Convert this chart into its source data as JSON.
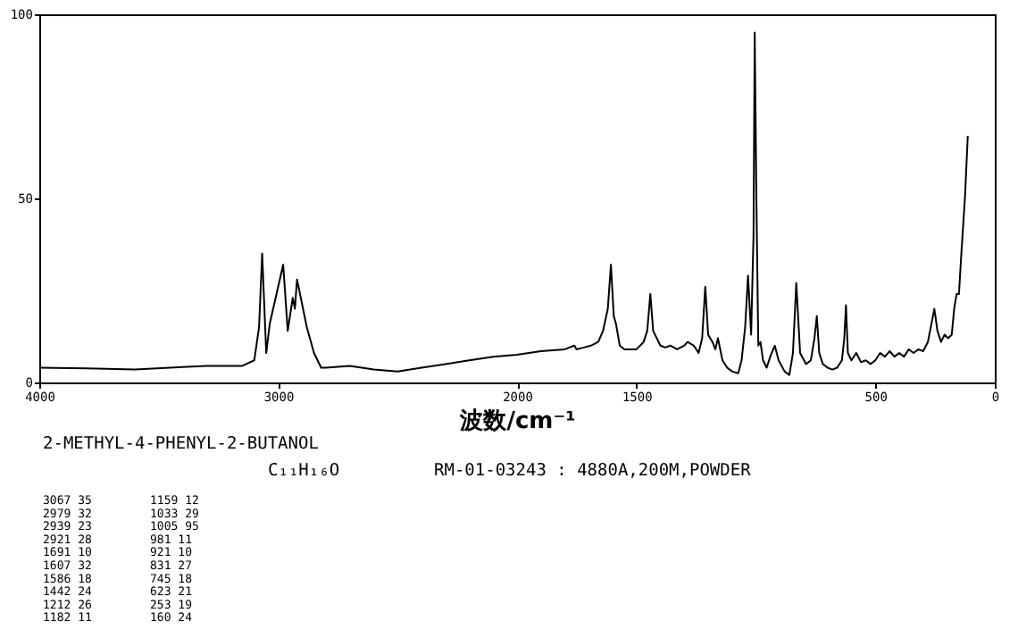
{
  "chart_data": {
    "type": "line",
    "xlabel": "波数/cm⁻¹",
    "x": [
      4000,
      3800,
      3600,
      3400,
      3300,
      3150,
      3100,
      3080,
      3067,
      3050,
      3035,
      2979,
      2960,
      2939,
      2930,
      2921,
      2880,
      2850,
      2820,
      2800,
      2700,
      2600,
      2500,
      2400,
      2300,
      2200,
      2100,
      2000,
      1900,
      1800,
      1760,
      1751,
      1720,
      1691,
      1660,
      1640,
      1620,
      1607,
      1595,
      1586,
      1570,
      1550,
      1500,
      1470,
      1455,
      1442,
      1430,
      1400,
      1380,
      1357,
      1330,
      1300,
      1286,
      1260,
      1240,
      1225,
      1212,
      1200,
      1182,
      1170,
      1159,
      1140,
      1120,
      1100,
      1074,
      1060,
      1045,
      1033,
      1020,
      1010,
      1005,
      998,
      990,
      981,
      970,
      955,
      940,
      921,
      905,
      880,
      860,
      845,
      831,
      815,
      790,
      770,
      755,
      745,
      735,
      720,
      700,
      680,
      660,
      640,
      630,
      623,
      615,
      600,
      580,
      560,
      540,
      520,
      500,
      480,
      460,
      440,
      420,
      400,
      380,
      360,
      340,
      320,
      300,
      280,
      265,
      253,
      240,
      225,
      210,
      195,
      180,
      170,
      160,
      150,
      140,
      125,
      113
    ],
    "series": [
      {
        "color": "#000000",
        "values": [
          4,
          3.8,
          3.5,
          4.2,
          4.5,
          4.5,
          6,
          15,
          35,
          8,
          16,
          32,
          14,
          23,
          20,
          28,
          15,
          8,
          4,
          4,
          4.5,
          3.5,
          3,
          4,
          5,
          6,
          7,
          7.5,
          8.5,
          9,
          10,
          9,
          9.5,
          10,
          11,
          14,
          20,
          32,
          18,
          16,
          10,
          9,
          9,
          11,
          14,
          24,
          14,
          10,
          9.5,
          10,
          9,
          10,
          11,
          10,
          8,
          12,
          26,
          13,
          11,
          9,
          12,
          6,
          4,
          3,
          2.5,
          6,
          15,
          29,
          13,
          40,
          95,
          50,
          10,
          11,
          6,
          4,
          7,
          10,
          6,
          3,
          2,
          8,
          27,
          8,
          5,
          6,
          12,
          18,
          8,
          5,
          4,
          3.5,
          4,
          6,
          12,
          21,
          8,
          6,
          8,
          5.5,
          6,
          5,
          6,
          8,
          7,
          8.5,
          7,
          8,
          7,
          9,
          8,
          9,
          8.5,
          11,
          16,
          20,
          14,
          11,
          13,
          12,
          13,
          20,
          24,
          24,
          35,
          50,
          67
        ]
      }
    ],
    "xlim": [
      4000,
      0
    ],
    "xticks": [
      4000,
      3000,
      2000,
      1500,
      500,
      0
    ],
    "ylim": [
      0,
      100
    ],
    "yticks": [
      0,
      50,
      100
    ],
    "grid": false,
    "annotations": [
      "2-METHYL-4-PHENYL-2-BUTANOL",
      "C₁₁H₁₆O",
      "RM-01-03243 : 4880A,200M,POWDER",
      "3067  35",
      "2979  32",
      "2939  23",
      "2921  28",
      "1691  10",
      "1607  32",
      "1586  18",
      "1442  24",
      "1212  26",
      "1182  11",
      "1159  12",
      "1033  29",
      "1005  95",
      " 981  11",
      " 921  10",
      " 831  27",
      " 745  18",
      " 623  21",
      " 253  19",
      " 160  24"
    ]
  }
}
